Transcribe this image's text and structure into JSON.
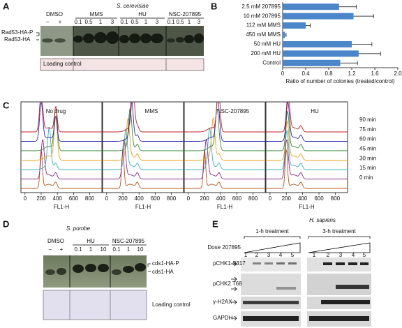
{
  "panel_labels": [
    "A",
    "B",
    "C",
    "D",
    "E"
  ],
  "panel_a": {
    "organism": "S. cerevisiae",
    "groups": [
      "DMSO",
      "MMS",
      "HU",
      "NSC-207895"
    ],
    "lanes": [
      "–",
      "+",
      "0.1",
      "0.5",
      "1",
      "3",
      "0.1",
      "0.5",
      "1",
      "3",
      "0.1",
      "0.5",
      "1",
      "3"
    ],
    "bands": [
      "Rad53-HA-P",
      "Rad53-HA"
    ],
    "loading": "Loading control"
  },
  "chart_data": {
    "type": "bar",
    "orientation": "horizontal",
    "categories": [
      "2.5 mM 207895",
      "10 mM 207895",
      "112 mM MMS",
      "450 mM MMS",
      "50 mM HU",
      "200 mM HU",
      "Control"
    ],
    "values": [
      0.98,
      1.23,
      0.4,
      0.04,
      1.2,
      1.32,
      1.0
    ],
    "errors": [
      0.3,
      0.35,
      0.08,
      0.02,
      0.35,
      0.38,
      0.3
    ],
    "color": "#4a86c8",
    "xlim": [
      0,
      2
    ],
    "xticks": [
      0,
      0.4,
      0.8,
      1.2,
      1.6,
      {
        "value": 2,
        "label": "2.0"
      }
    ],
    "xlabel": "Ratio of number of colonies (treated/control)"
  },
  "panel_c": {
    "conditions": [
      "No drug",
      "MMS",
      "NSC-207895",
      "HU"
    ],
    "times": [
      "90 min",
      "75 min",
      "60 min",
      "45 min",
      "30 min",
      "15 min",
      "0 min"
    ],
    "colors": [
      "#c02020",
      "#2a2ab0",
      "#3a8a3a",
      "#e8a020",
      "#3bb0c0",
      "#8a2a8a",
      "#b8561a"
    ],
    "xlim": [
      -50,
      950
    ],
    "xticks": [
      0,
      200,
      400,
      600,
      800
    ],
    "xlabel": "FL1-H"
  },
  "panel_d": {
    "organism": "S. pombe",
    "groups": [
      "DMSO",
      "HU",
      "NSC-207895"
    ],
    "lanes": [
      "–",
      "+",
      "0.1",
      "1",
      "10",
      "0.1",
      "1",
      "10"
    ],
    "bands": [
      "cds1-HA-P",
      "cds1-HA"
    ],
    "loading": "Loading control"
  },
  "panel_e": {
    "organism": "H. sapiens",
    "treatments": [
      "1-h treatment",
      "3-h treatment"
    ],
    "dose": "Dose 207895",
    "lanes": [
      "1",
      "2",
      "3",
      "4",
      "5",
      "1",
      "2",
      "3",
      "4",
      "5"
    ],
    "rows": [
      "pCHK1 S317",
      "pCHK2 T68",
      "γ-H2AX",
      "GAPDH"
    ]
  }
}
